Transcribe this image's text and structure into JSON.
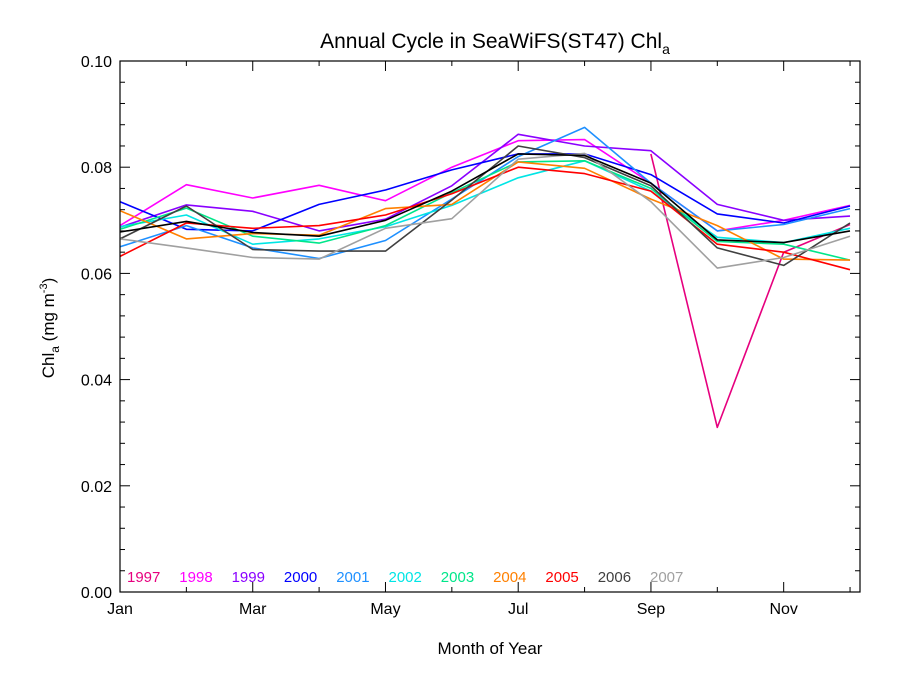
{
  "chart_data": {
    "type": "line",
    "title": "Annual Cycle in SeaWiFS(ST47) Chl",
    "title_subscript": "a",
    "xlabel": "Month of Year",
    "ylabel": {
      "main": "Chl",
      "sub": "a",
      "units": " (mg m",
      "sup": "-3",
      "close": ")"
    },
    "xlim": [
      1,
      12.15
    ],
    "ylim": [
      0,
      0.1
    ],
    "x_ticks": [
      {
        "value": 1,
        "label": "Jan"
      },
      {
        "value": 3,
        "label": "Mar"
      },
      {
        "value": 5,
        "label": "May"
      },
      {
        "value": 7,
        "label": "Jul"
      },
      {
        "value": 9,
        "label": "Sep"
      },
      {
        "value": 11,
        "label": "Nov"
      }
    ],
    "y_ticks": [
      {
        "value": 0,
        "label": "0.00"
      },
      {
        "value": 0.02,
        "label": "0.02"
      },
      {
        "value": 0.04,
        "label": "0.04"
      },
      {
        "value": 0.06,
        "label": "0.06"
      },
      {
        "value": 0.08,
        "label": "0.08"
      },
      {
        "value": 0.1,
        "label": "0.10"
      }
    ],
    "grid": false,
    "legend_position": "bottom-left",
    "x": [
      1.0,
      2.0,
      3.0,
      4.0,
      5.0,
      6.0,
      7.0,
      8.0,
      9.0,
      10.0,
      11.0,
      12.0
    ],
    "series": [
      {
        "name": "1997",
        "color": "#e6007e",
        "values": [
          null,
          null,
          null,
          null,
          null,
          null,
          null,
          null,
          0.0825,
          0.031,
          0.064,
          0.0692
        ]
      },
      {
        "name": "1998",
        "color": "#ff00ff",
        "values": [
          0.069,
          0.0767,
          0.0742,
          0.0766,
          0.0737,
          0.08,
          0.085,
          0.0852,
          0.077,
          0.068,
          0.07,
          0.0728
        ]
      },
      {
        "name": "1999",
        "color": "#8a00ff",
        "values": [
          0.0687,
          0.0729,
          0.0717,
          0.068,
          0.0702,
          0.0765,
          0.0862,
          0.084,
          0.0831,
          0.073,
          0.07,
          0.0708
        ]
      },
      {
        "name": "2000",
        "color": "#0000ff",
        "values": [
          0.0735,
          0.0683,
          0.068,
          0.073,
          0.0757,
          0.0795,
          0.0825,
          0.0825,
          0.0786,
          0.0712,
          0.0695,
          0.0727
        ]
      },
      {
        "name": "2001",
        "color": "#1e90ff",
        "values": [
          0.065,
          0.069,
          0.0648,
          0.0628,
          0.0662,
          0.074,
          0.082,
          0.0875,
          0.077,
          0.068,
          0.0692,
          0.0722
        ]
      },
      {
        "name": "2002",
        "color": "#00e5e5",
        "values": [
          0.0688,
          0.071,
          0.0655,
          0.0665,
          0.0688,
          0.0728,
          0.078,
          0.0812,
          0.0755,
          0.0668,
          0.0658,
          0.0685
        ]
      },
      {
        "name": "2003",
        "color": "#00e68a",
        "values": [
          0.0683,
          0.0723,
          0.067,
          0.0657,
          0.069,
          0.0752,
          0.081,
          0.0812,
          0.076,
          0.066,
          0.0655,
          0.0625
        ]
      },
      {
        "name": "2004",
        "color": "#ff8000",
        "values": [
          0.0718,
          0.0665,
          0.0675,
          0.0672,
          0.0722,
          0.073,
          0.081,
          0.0798,
          0.074,
          0.069,
          0.0627,
          0.0625
        ]
      },
      {
        "name": "2005",
        "color": "#ff0000",
        "values": [
          0.0632,
          0.0695,
          0.0685,
          0.069,
          0.071,
          0.075,
          0.08,
          0.0788,
          0.0755,
          0.0655,
          0.064,
          0.0607
        ]
      },
      {
        "name": "2006",
        "color": "#404040",
        "values": [
          0.0665,
          0.0727,
          0.0645,
          0.0642,
          0.0642,
          0.0738,
          0.084,
          0.0818,
          0.0765,
          0.0648,
          0.0615,
          0.0695
        ]
      },
      {
        "name": "2007",
        "color": "#a0a0a0",
        "values": [
          0.0665,
          0.0648,
          0.063,
          0.0627,
          0.0685,
          0.0703,
          0.0815,
          0.0826,
          0.0735,
          0.061,
          0.063,
          0.067
        ]
      },
      {
        "name": "",
        "color": "#000000",
        "values": [
          0.0678,
          0.0698,
          0.0677,
          0.067,
          0.07,
          0.0755,
          0.0825,
          0.0822,
          0.077,
          0.0663,
          0.0658,
          0.068
        ]
      }
    ]
  }
}
